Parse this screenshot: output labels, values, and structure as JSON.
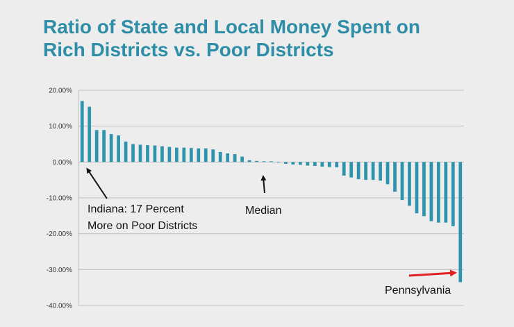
{
  "title": {
    "line1": "Ratio of State and Local Money Spent on",
    "line2": "Rich Districts vs. Poor Districts"
  },
  "colors": {
    "bar": "#2e93ad",
    "title": "#2e8ea8",
    "grid": "#bfbfbf",
    "red_arrow": "#e02020"
  },
  "chart_data": {
    "type": "bar",
    "title": "Ratio of State and Local Money Spent on Rich Districts vs. Poor Districts",
    "xlabel": "",
    "ylabel": "",
    "ylim": [
      -40,
      20
    ],
    "grid": true,
    "y_ticks": [
      "20.00%",
      "10.00%",
      "0.00%",
      "-10.00%",
      "-20.00%",
      "-30.00%",
      "-40.00%"
    ],
    "y_tick_values": [
      20,
      10,
      0,
      -10,
      -20,
      -30,
      -40
    ],
    "values": [
      17.0,
      15.4,
      8.9,
      8.9,
      7.8,
      7.4,
      5.7,
      5.0,
      4.8,
      4.7,
      4.6,
      4.4,
      4.2,
      4.0,
      4.0,
      3.9,
      3.8,
      3.8,
      3.5,
      2.8,
      2.4,
      2.2,
      1.5,
      0.5,
      0.3,
      0.2,
      0.2,
      0.0,
      -0.5,
      -0.7,
      -0.8,
      -1.0,
      -1.1,
      -1.3,
      -1.4,
      -1.5,
      -3.8,
      -4.3,
      -4.8,
      -5.0,
      -5.0,
      -5.2,
      -6.2,
      -8.3,
      -10.6,
      -12.2,
      -14.3,
      -15.1,
      -16.5,
      -16.9,
      -16.9,
      -17.9,
      -33.5
    ]
  },
  "annotations": {
    "indiana_line1": "Indiana: 17 Percent",
    "indiana_line2": "More on Poor Districts",
    "median": "Median",
    "pennsylvania": "Pennsylvania"
  }
}
